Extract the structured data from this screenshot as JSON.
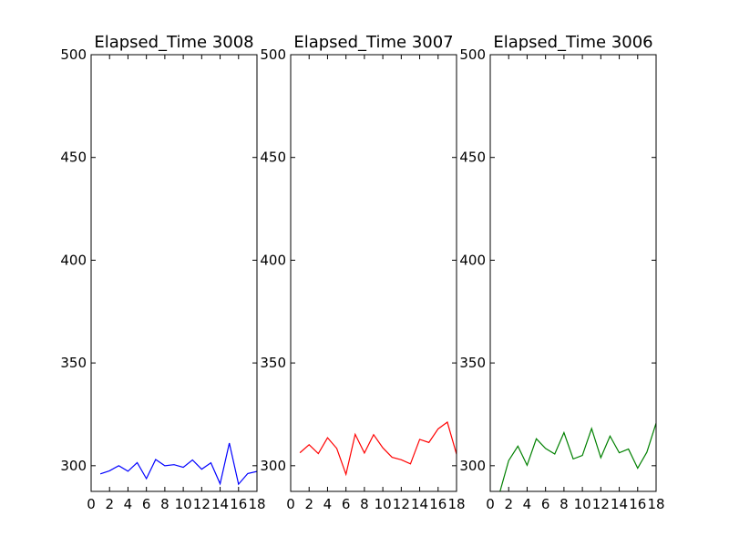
{
  "chart_data": [
    {
      "type": "line",
      "title": "Elapsed_Time 3008",
      "color": "#0000ff",
      "xlim": [
        0,
        18
      ],
      "ylim": [
        287.5,
        500
      ],
      "xticks": [
        "0",
        "2",
        "4",
        "6",
        "8",
        "10",
        "12",
        "14",
        "16",
        "18"
      ],
      "yticks": [
        "300",
        "350",
        "400",
        "450",
        "500"
      ],
      "x": [
        1,
        2,
        3,
        4,
        5,
        6,
        7,
        8,
        9,
        10,
        11,
        12,
        13,
        14,
        15,
        16,
        17,
        18
      ],
      "values": [
        296,
        297.5,
        300,
        297.3,
        301.5,
        293.7,
        303,
        300,
        300.5,
        299.2,
        302.8,
        298.3,
        301.4,
        291.2,
        311,
        291,
        296.2,
        297.2
      ]
    },
    {
      "type": "line",
      "title": "Elapsed_Time 3007",
      "color": "#ff0000",
      "xlim": [
        0,
        18
      ],
      "ylim": [
        287.5,
        500
      ],
      "xticks": [
        "0",
        "2",
        "4",
        "6",
        "8",
        "10",
        "12",
        "14",
        "16",
        "18"
      ],
      "yticks": [
        "300",
        "350",
        "400",
        "450",
        "500"
      ],
      "x": [
        1,
        2,
        3,
        4,
        5,
        6,
        7,
        8,
        9,
        10,
        11,
        12,
        13,
        14,
        15,
        16,
        17,
        18
      ],
      "values": [
        306.3,
        310.2,
        305.9,
        313.6,
        308.4,
        295.8,
        315.3,
        306.2,
        315.1,
        308.7,
        304.1,
        302.9,
        300.9,
        312.8,
        311.3,
        317.9,
        321.2,
        305.6
      ]
    },
    {
      "type": "line",
      "title": "Elapsed_Time 3006",
      "color": "#008000",
      "xlim": [
        0,
        18
      ],
      "ylim": [
        287.5,
        500
      ],
      "xticks": [
        "0",
        "2",
        "4",
        "6",
        "8",
        "10",
        "12",
        "14",
        "16",
        "18"
      ],
      "yticks": [
        "300",
        "350",
        "400",
        "450",
        "500"
      ],
      "x": [
        1,
        2,
        3,
        4,
        5,
        6,
        7,
        8,
        9,
        10,
        11,
        12,
        13,
        14,
        15,
        16,
        17,
        18
      ],
      "values": [
        286.5,
        302.5,
        309.5,
        300.2,
        313.1,
        308.4,
        305.7,
        316.1,
        303.3,
        305,
        318.1,
        303.9,
        314.4,
        306.3,
        308.1,
        298.8,
        306.6,
        320.7
      ]
    }
  ]
}
